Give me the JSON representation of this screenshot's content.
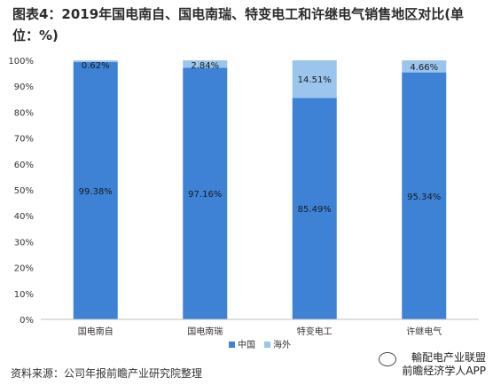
{
  "title": "图表4：2019年国电南自、国电南瑞、特变电工和许继电气销售地区对比(单位：%)",
  "source": "资料来源：公司年报前瞻产业研究院整理",
  "brand": {
    "line1": "輸配电产业联盟",
    "line2": "前瞻经济学人APP"
  },
  "colors": {
    "china": "#3E82D6",
    "overseas": "#9BC5EC"
  },
  "chart_data": {
    "type": "bar",
    "stacked": true,
    "categories": [
      "国电南自",
      "国电南瑞",
      "特变电工",
      "许继电气"
    ],
    "series": [
      {
        "name": "中国",
        "values": [
          99.38,
          97.16,
          85.49,
          95.34
        ]
      },
      {
        "name": "海外",
        "values": [
          0.62,
          2.84,
          14.51,
          4.66
        ]
      }
    ],
    "value_labels": {
      "中国": [
        "99.38%",
        "97.16%",
        "85.49%",
        "95.34%"
      ],
      "海外": [
        "0.62%",
        "2.84%",
        "14.51%",
        "4.66%"
      ]
    },
    "yticks": [
      "0%",
      "10%",
      "20%",
      "30%",
      "40%",
      "50%",
      "60%",
      "70%",
      "80%",
      "90%",
      "100%"
    ],
    "ylim": [
      0,
      100
    ],
    "grid": false,
    "legend_position": "bottom"
  }
}
